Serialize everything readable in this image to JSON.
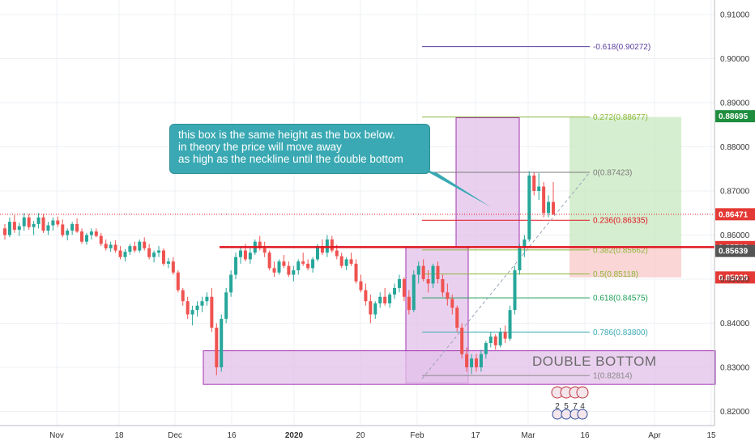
{
  "chart_data": {
    "type": "candlestick",
    "x_ticks": [
      "Nov",
      "18",
      "Dec",
      "16",
      "2020",
      "20",
      "Feb",
      "17",
      "Mar",
      "16",
      "Apr",
      "15"
    ],
    "y_ticks": [
      "0.91000",
      "0.90000",
      "0.89000",
      "0.88000",
      "0.87000",
      "0.86000",
      "0.85000",
      "0.84000",
      "0.83000",
      "0.82000"
    ],
    "ylim": [
      0.8165,
      0.9175
    ],
    "grid": true,
    "candles_ohlc": [
      [
        0.8615,
        0.8625,
        0.859,
        0.86
      ],
      [
        0.86,
        0.864,
        0.8595,
        0.863
      ],
      [
        0.863,
        0.8645,
        0.8605,
        0.8612
      ],
      [
        0.8612,
        0.8628,
        0.8598,
        0.862
      ],
      [
        0.862,
        0.865,
        0.861,
        0.864
      ],
      [
        0.864,
        0.8648,
        0.8612,
        0.8618
      ],
      [
        0.8618,
        0.8632,
        0.86,
        0.8625
      ],
      [
        0.8625,
        0.865,
        0.8615,
        0.864
      ],
      [
        0.864,
        0.8648,
        0.8605,
        0.861
      ],
      [
        0.861,
        0.863,
        0.86,
        0.8622
      ],
      [
        0.8622,
        0.864,
        0.861,
        0.8633
      ],
      [
        0.8633,
        0.8642,
        0.8618,
        0.8624
      ],
      [
        0.8624,
        0.8635,
        0.8595,
        0.86
      ],
      [
        0.86,
        0.8615,
        0.8588,
        0.861
      ],
      [
        0.861,
        0.863,
        0.86,
        0.8625
      ],
      [
        0.8625,
        0.8638,
        0.8605,
        0.8608
      ],
      [
        0.8608,
        0.8615,
        0.858,
        0.8585
      ],
      [
        0.8585,
        0.8605,
        0.8578,
        0.86
      ],
      [
        0.86,
        0.8615,
        0.859,
        0.8608
      ],
      [
        0.8608,
        0.8615,
        0.8595,
        0.8598
      ],
      [
        0.8598,
        0.8605,
        0.8575,
        0.858
      ],
      [
        0.858,
        0.859,
        0.8565,
        0.857
      ],
      [
        0.857,
        0.8585,
        0.8562,
        0.8578
      ],
      [
        0.8578,
        0.8588,
        0.856,
        0.8565
      ],
      [
        0.8565,
        0.8575,
        0.8545,
        0.855
      ],
      [
        0.855,
        0.8568,
        0.854,
        0.8562
      ],
      [
        0.8562,
        0.858,
        0.8555,
        0.8575
      ],
      [
        0.8575,
        0.8585,
        0.856,
        0.8565
      ],
      [
        0.8565,
        0.859,
        0.856,
        0.8585
      ],
      [
        0.8585,
        0.8595,
        0.8565,
        0.857
      ],
      [
        0.857,
        0.858,
        0.8545,
        0.855
      ],
      [
        0.855,
        0.8565,
        0.8538,
        0.856
      ],
      [
        0.856,
        0.8575,
        0.855,
        0.8565
      ],
      [
        0.8565,
        0.857,
        0.853,
        0.8535
      ],
      [
        0.8535,
        0.8548,
        0.8525,
        0.854
      ],
      [
        0.854,
        0.855,
        0.851,
        0.8515
      ],
      [
        0.8515,
        0.852,
        0.847,
        0.8475
      ],
      [
        0.8475,
        0.848,
        0.844,
        0.845
      ],
      [
        0.845,
        0.846,
        0.841,
        0.842
      ],
      [
        0.842,
        0.844,
        0.8395,
        0.843
      ],
      [
        0.843,
        0.845,
        0.8415,
        0.844
      ],
      [
        0.844,
        0.846,
        0.8425,
        0.845
      ],
      [
        0.845,
        0.847,
        0.844,
        0.846
      ],
      [
        0.846,
        0.848,
        0.838,
        0.839
      ],
      [
        0.839,
        0.84,
        0.8282,
        0.83
      ],
      [
        0.83,
        0.842,
        0.829,
        0.841
      ],
      [
        0.841,
        0.848,
        0.84,
        0.847
      ],
      [
        0.847,
        0.852,
        0.846,
        0.851
      ],
      [
        0.851,
        0.856,
        0.85,
        0.855
      ],
      [
        0.855,
        0.8575,
        0.8535,
        0.8565
      ],
      [
        0.8565,
        0.858,
        0.854,
        0.8545
      ],
      [
        0.8545,
        0.857,
        0.8535,
        0.856
      ],
      [
        0.856,
        0.859,
        0.8555,
        0.8585
      ],
      [
        0.8585,
        0.8598,
        0.8565,
        0.857
      ],
      [
        0.857,
        0.8585,
        0.855,
        0.856
      ],
      [
        0.856,
        0.8565,
        0.852,
        0.8525
      ],
      [
        0.8525,
        0.854,
        0.8505,
        0.8515
      ],
      [
        0.8515,
        0.8545,
        0.851,
        0.854
      ],
      [
        0.854,
        0.8555,
        0.8525,
        0.853
      ],
      [
        0.853,
        0.854,
        0.8505,
        0.851
      ],
      [
        0.851,
        0.853,
        0.8495,
        0.852
      ],
      [
        0.852,
        0.8545,
        0.851,
        0.854
      ],
      [
        0.854,
        0.856,
        0.853,
        0.8535
      ],
      [
        0.8535,
        0.8545,
        0.852,
        0.8525
      ],
      [
        0.8525,
        0.855,
        0.8515,
        0.8545
      ],
      [
        0.8545,
        0.858,
        0.854,
        0.8575
      ],
      [
        0.8575,
        0.859,
        0.8555,
        0.856
      ],
      [
        0.856,
        0.86,
        0.855,
        0.859
      ],
      [
        0.859,
        0.8598,
        0.856,
        0.8565
      ],
      [
        0.8565,
        0.8578,
        0.8545,
        0.8552
      ],
      [
        0.8552,
        0.856,
        0.8525,
        0.853
      ],
      [
        0.853,
        0.855,
        0.852,
        0.8545
      ],
      [
        0.8545,
        0.856,
        0.853,
        0.8535
      ],
      [
        0.8535,
        0.8545,
        0.849,
        0.8495
      ],
      [
        0.8495,
        0.851,
        0.847,
        0.8475
      ],
      [
        0.8475,
        0.849,
        0.844,
        0.845
      ],
      [
        0.845,
        0.8465,
        0.84,
        0.842
      ],
      [
        0.842,
        0.845,
        0.841,
        0.8445
      ],
      [
        0.8445,
        0.847,
        0.8435,
        0.846
      ],
      [
        0.846,
        0.848,
        0.844,
        0.8445
      ],
      [
        0.8445,
        0.847,
        0.8435,
        0.8465
      ],
      [
        0.8465,
        0.849,
        0.8455,
        0.848
      ],
      [
        0.848,
        0.851,
        0.847,
        0.85
      ],
      [
        0.85,
        0.8505,
        0.845,
        0.846
      ],
      [
        0.846,
        0.8475,
        0.842,
        0.843
      ],
      [
        0.843,
        0.852,
        0.8425,
        0.851
      ],
      [
        0.851,
        0.854,
        0.849,
        0.853
      ],
      [
        0.853,
        0.8545,
        0.8495,
        0.85
      ],
      [
        0.85,
        0.852,
        0.847,
        0.849
      ],
      [
        0.849,
        0.8535,
        0.848,
        0.853
      ],
      [
        0.853,
        0.854,
        0.849,
        0.85
      ],
      [
        0.85,
        0.851,
        0.846,
        0.847
      ],
      [
        0.847,
        0.849,
        0.844,
        0.8455
      ],
      [
        0.8455,
        0.8465,
        0.842,
        0.8435
      ],
      [
        0.8435,
        0.844,
        0.838,
        0.839
      ],
      [
        0.839,
        0.84,
        0.832,
        0.833
      ],
      [
        0.833,
        0.8345,
        0.829,
        0.83
      ],
      [
        0.83,
        0.833,
        0.8285,
        0.832
      ],
      [
        0.832,
        0.833,
        0.829,
        0.83
      ],
      [
        0.83,
        0.834,
        0.829,
        0.833
      ],
      [
        0.833,
        0.836,
        0.832,
        0.8355
      ],
      [
        0.8355,
        0.838,
        0.8345,
        0.837
      ],
      [
        0.837,
        0.8375,
        0.834,
        0.835
      ],
      [
        0.835,
        0.839,
        0.8345,
        0.838
      ],
      [
        0.838,
        0.8395,
        0.8355,
        0.8365
      ],
      [
        0.8365,
        0.844,
        0.836,
        0.843
      ],
      [
        0.843,
        0.853,
        0.842,
        0.852
      ],
      [
        0.852,
        0.858,
        0.851,
        0.857
      ],
      [
        0.857,
        0.86,
        0.855,
        0.859
      ],
      [
        0.859,
        0.8745,
        0.8585,
        0.8735
      ],
      [
        0.8735,
        0.8742,
        0.869,
        0.87
      ],
      [
        0.87,
        0.874,
        0.868,
        0.871
      ],
      [
        0.871,
        0.872,
        0.864,
        0.865
      ],
      [
        0.865,
        0.869,
        0.864,
        0.8675
      ],
      [
        0.8675,
        0.872,
        0.8645,
        0.8647
      ]
    ],
    "levels": {
      "fib_labels": [
        "-0.618(0.90272)",
        "0.272(0.88677)",
        "0(0.87423)",
        "0.236(0.86335)",
        "0.382(0.85662)",
        "0.5(0.85118)",
        "0.618(0.84575)",
        "0.786(0.83800)",
        "1(0.82814)"
      ],
      "fib_values": [
        0.90272,
        0.88677,
        0.87423,
        0.86335,
        0.85662,
        0.85118,
        0.84575,
        0.838,
        0.82814
      ],
      "neckline": 0.85728,
      "current_price": 0.86471,
      "double_bottom_zone": [
        0.82814,
        0.83375
      ]
    },
    "price_tags": [
      "0.88695",
      "0.86471",
      "0.85728",
      "0.85639",
      "0.85039"
    ],
    "price_tag_values": [
      0.88695,
      0.86471,
      0.85728,
      0.85639,
      0.85039
    ],
    "price_tag_colors": [
      "#1e8e3e",
      "#e53935",
      "#e53935",
      "#555555",
      "#e53935"
    ],
    "annotation_lines": [
      "this box is the same height as the box below.",
      "in theory the price will move away",
      "as high as the neckline until the double bottom"
    ],
    "zone_label": "DOUBLE BOTTOM",
    "event_badges": [
      "2",
      "5",
      "7",
      "4"
    ],
    "colors": {
      "up": "#26a69a",
      "down": "#ef5350",
      "neckline": "#e0141e",
      "fib_green": "#1e9e57",
      "fib_purple": "#5b3e9e",
      "box_purple": "#a030b0"
    }
  }
}
